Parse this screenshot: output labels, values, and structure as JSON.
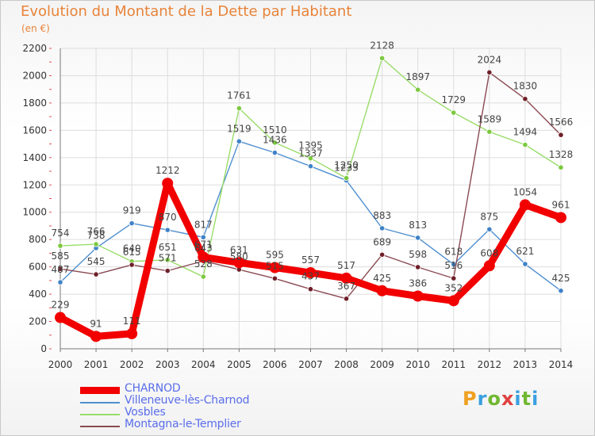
{
  "header": {
    "title": "Evolution du Montant de la Dette par Habitant",
    "unit": "(en €)"
  },
  "logo": {
    "text": "Proxiti"
  },
  "colors": {
    "title": "#e8843a",
    "legend_text": "#5a6eea",
    "grid": "#dddddd",
    "axis": "#777777"
  },
  "chart_data": {
    "type": "line",
    "title": "Evolution du Montant de la Dette par Habitant",
    "ylabel": "(en €)",
    "xlabel": "",
    "x": [
      "2000",
      "2001",
      "2002",
      "2003",
      "2004",
      "2005",
      "2006",
      "2007",
      "2008",
      "2009",
      "2010",
      "2011",
      "2012",
      "2013",
      "2014"
    ],
    "y_ticks": [
      0,
      200,
      400,
      600,
      800,
      1000,
      1200,
      1400,
      1600,
      1800,
      2000,
      2200
    ],
    "ylim": [
      0,
      2200
    ],
    "grid": true,
    "legend_position": "bottom-left",
    "series": [
      {
        "name": "CHARNOD",
        "color": "#f20000",
        "emphasis": "thick",
        "values": [
          229,
          91,
          111,
          1212,
          671,
          631,
          595,
          557,
          517,
          425,
          386,
          352,
          608,
          1054,
          961
        ],
        "labels": [
          "229",
          "91",
          "111",
          "1212",
          "671",
          "631",
          "595",
          "557",
          "517",
          "425",
          "386",
          "352",
          "608",
          "1054",
          "961"
        ]
      },
      {
        "name": "Villeneuve-lès-Charnod",
        "color": "#4f8fd0",
        "point_color": "#3f82c8",
        "values": [
          487,
          738,
          919,
          870,
          817,
          1519,
          1436,
          1337,
          1233,
          883,
          813,
          618,
          875,
          621,
          425
        ],
        "labels": [
          "487",
          "738",
          "919",
          "870",
          "817",
          "1519",
          "1436",
          "1337",
          "1233",
          "883",
          "813",
          "618",
          "875",
          "621",
          "425"
        ]
      },
      {
        "name": "Vosbles",
        "color": "#9adc6a",
        "point_color": "#7cc83f",
        "values": [
          754,
          766,
          640,
          651,
          528,
          1761,
          1510,
          1395,
          1250,
          2128,
          1897,
          1729,
          1589,
          1494,
          1328
        ],
        "labels": [
          "754",
          "766",
          "640",
          "651",
          "528",
          "1761",
          "1510",
          "1395",
          "1250",
          "2128",
          "1897",
          "1729",
          "1589",
          "1494",
          "1328"
        ]
      },
      {
        "name": "Montagna-le-Templier",
        "color": "#8a4a52",
        "point_color": "#6e1f27",
        "values": [
          585,
          545,
          615,
          571,
          643,
          580,
          515,
          437,
          367,
          689,
          598,
          516,
          2024,
          1830,
          1566
        ],
        "labels": [
          "585",
          "545",
          "615",
          "571",
          "643",
          "580",
          "515",
          "437",
          "367",
          "689",
          "598",
          "516",
          "2024",
          "1830",
          "1566"
        ]
      }
    ]
  }
}
